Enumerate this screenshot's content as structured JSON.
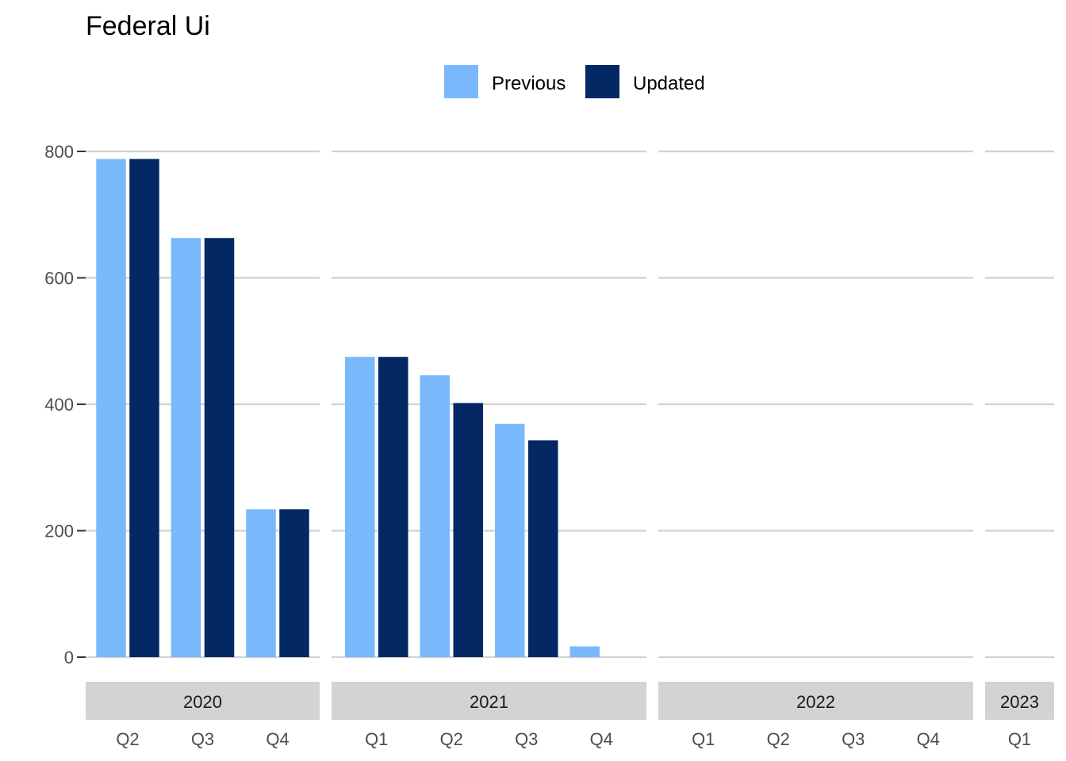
{
  "chart_data": {
    "type": "bar",
    "title": "Federal Ui",
    "xlabel": "",
    "ylabel": "",
    "ylim": [
      0,
      800
    ],
    "yticks": [
      0,
      200,
      400,
      600,
      800
    ],
    "grid": true,
    "legend_position": "top",
    "series": [
      {
        "name": "Previous",
        "color": "#7ab8fc"
      },
      {
        "name": "Updated",
        "color": "#032863"
      }
    ],
    "facets": [
      {
        "label": "2020",
        "categories": [
          "Q2",
          "Q3",
          "Q4"
        ],
        "values": {
          "Previous": [
            788,
            663,
            234
          ],
          "Updated": [
            788,
            663,
            234
          ]
        }
      },
      {
        "label": "2021",
        "categories": [
          "Q1",
          "Q2",
          "Q3",
          "Q4"
        ],
        "values": {
          "Previous": [
            475,
            446,
            369,
            17
          ],
          "Updated": [
            475,
            402,
            343,
            0
          ]
        }
      },
      {
        "label": "2022",
        "categories": [
          "Q1",
          "Q2",
          "Q3",
          "Q4"
        ],
        "values": {
          "Previous": [
            0,
            0,
            0,
            0
          ],
          "Updated": [
            0,
            0,
            0,
            0
          ]
        }
      },
      {
        "label": "2023",
        "categories": [
          "Q1"
        ],
        "values": {
          "Previous": [
            0
          ],
          "Updated": [
            0
          ]
        }
      }
    ]
  }
}
